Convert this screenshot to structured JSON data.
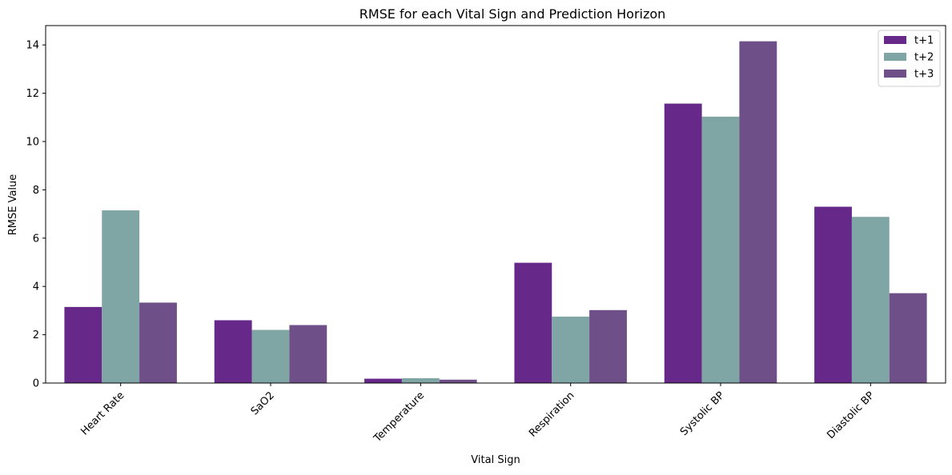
{
  "chart_data": {
    "type": "bar",
    "title": "RMSE for each Vital Sign and Prediction Horizon",
    "xlabel": "Vital Sign",
    "ylabel": "RMSE Value",
    "categories": [
      "Heart Rate",
      "SaO2",
      "Temperature",
      "Respiration",
      "Systolic BP",
      "Diastolic BP"
    ],
    "series": [
      {
        "name": "t+1",
        "color": "#66298a",
        "values": [
          3.15,
          2.6,
          0.18,
          4.98,
          11.57,
          7.3
        ]
      },
      {
        "name": "t+2",
        "color": "#7fa6a5",
        "values": [
          7.15,
          2.2,
          0.2,
          2.75,
          11.03,
          6.88
        ]
      },
      {
        "name": "t+3",
        "color": "#6e4f87",
        "values": [
          3.33,
          2.4,
          0.14,
          3.02,
          14.15,
          3.72
        ]
      }
    ],
    "ylim": [
      0,
      14.8
    ],
    "yticks": [
      0,
      2,
      4,
      6,
      8,
      10,
      12,
      14
    ],
    "xtick_rotation": 45,
    "grid": false,
    "legend_position": "top-right"
  }
}
